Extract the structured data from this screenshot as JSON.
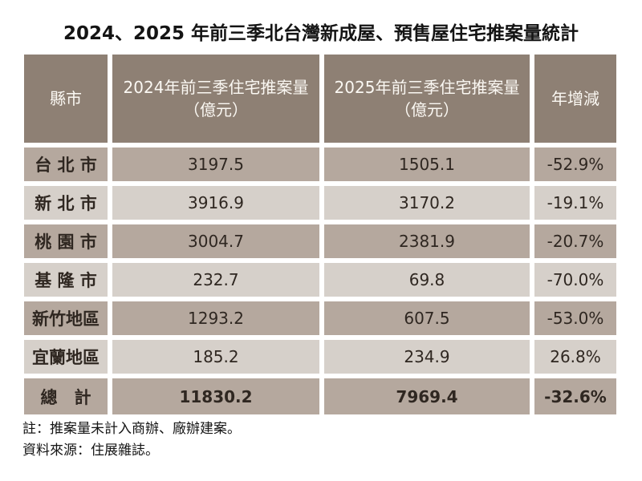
{
  "page": {
    "title": "2024、2025 年前三季北台灣新成屋、預售屋住宅推案量統計"
  },
  "table": {
    "header": {
      "city": "縣市",
      "y2024_line1": "2024年前三季住宅推案量",
      "y2024_line2": "（億元）",
      "y2025_line1": "2025年前三季住宅推案量",
      "y2025_line2": "（億元）",
      "yoy": "年增減"
    },
    "rows": [
      {
        "city": "台 北 市",
        "v2024": "3197.5",
        "v2025": "1505.1",
        "yoy": "-52.9%"
      },
      {
        "city": "新 北 市",
        "v2024": "3916.9",
        "v2025": "3170.2",
        "yoy": "-19.1%"
      },
      {
        "city": "桃 園 市",
        "v2024": "3004.7",
        "v2025": "2381.9",
        "yoy": "-20.7%"
      },
      {
        "city": "基 隆 市",
        "v2024": "232.7",
        "v2025": "69.8",
        "yoy": "-70.0%"
      },
      {
        "city": "新竹地區",
        "v2024": "1293.2",
        "v2025": "607.5",
        "yoy": "-53.0%"
      },
      {
        "city": "宜蘭地區",
        "v2024": "185.2",
        "v2025": "234.9",
        "yoy": "26.8%"
      }
    ],
    "total": {
      "city": "總　計",
      "v2024": "11830.2",
      "v2025": "7969.4",
      "yoy": "-32.6%"
    }
  },
  "notes": {
    "note1": "註：推案量未計入商辦、廠辦建案。",
    "note2": "資料來源：住展雜誌。"
  },
  "colors": {
    "header_bg": "#8e8074",
    "row_dark_bg": "#b5a89e",
    "row_light_bg": "#d6d0ca",
    "header_text": "#fbf8f3",
    "cell_text": "#2f2721"
  },
  "chart_data": {
    "type": "table",
    "title": "2024、2025 年前三季北台灣新成屋、預售屋住宅推案量統計",
    "columns": [
      "縣市",
      "2024年前三季住宅推案量（億元）",
      "2025年前三季住宅推案量（億元）",
      "年增減"
    ],
    "rows": [
      [
        "台北市",
        3197.5,
        1505.1,
        "-52.9%"
      ],
      [
        "新北市",
        3916.9,
        3170.2,
        "-19.1%"
      ],
      [
        "桃園市",
        3004.7,
        2381.9,
        "-20.7%"
      ],
      [
        "基隆市",
        232.7,
        69.8,
        "-70.0%"
      ],
      [
        "新竹地區",
        1293.2,
        607.5,
        "-53.0%"
      ],
      [
        "宜蘭地區",
        185.2,
        234.9,
        "26.8%"
      ],
      [
        "總計",
        11830.2,
        7969.4,
        "-32.6%"
      ]
    ],
    "notes": [
      "註：推案量未計入商辦、廠辦建案。",
      "資料來源：住展雜誌。"
    ]
  }
}
